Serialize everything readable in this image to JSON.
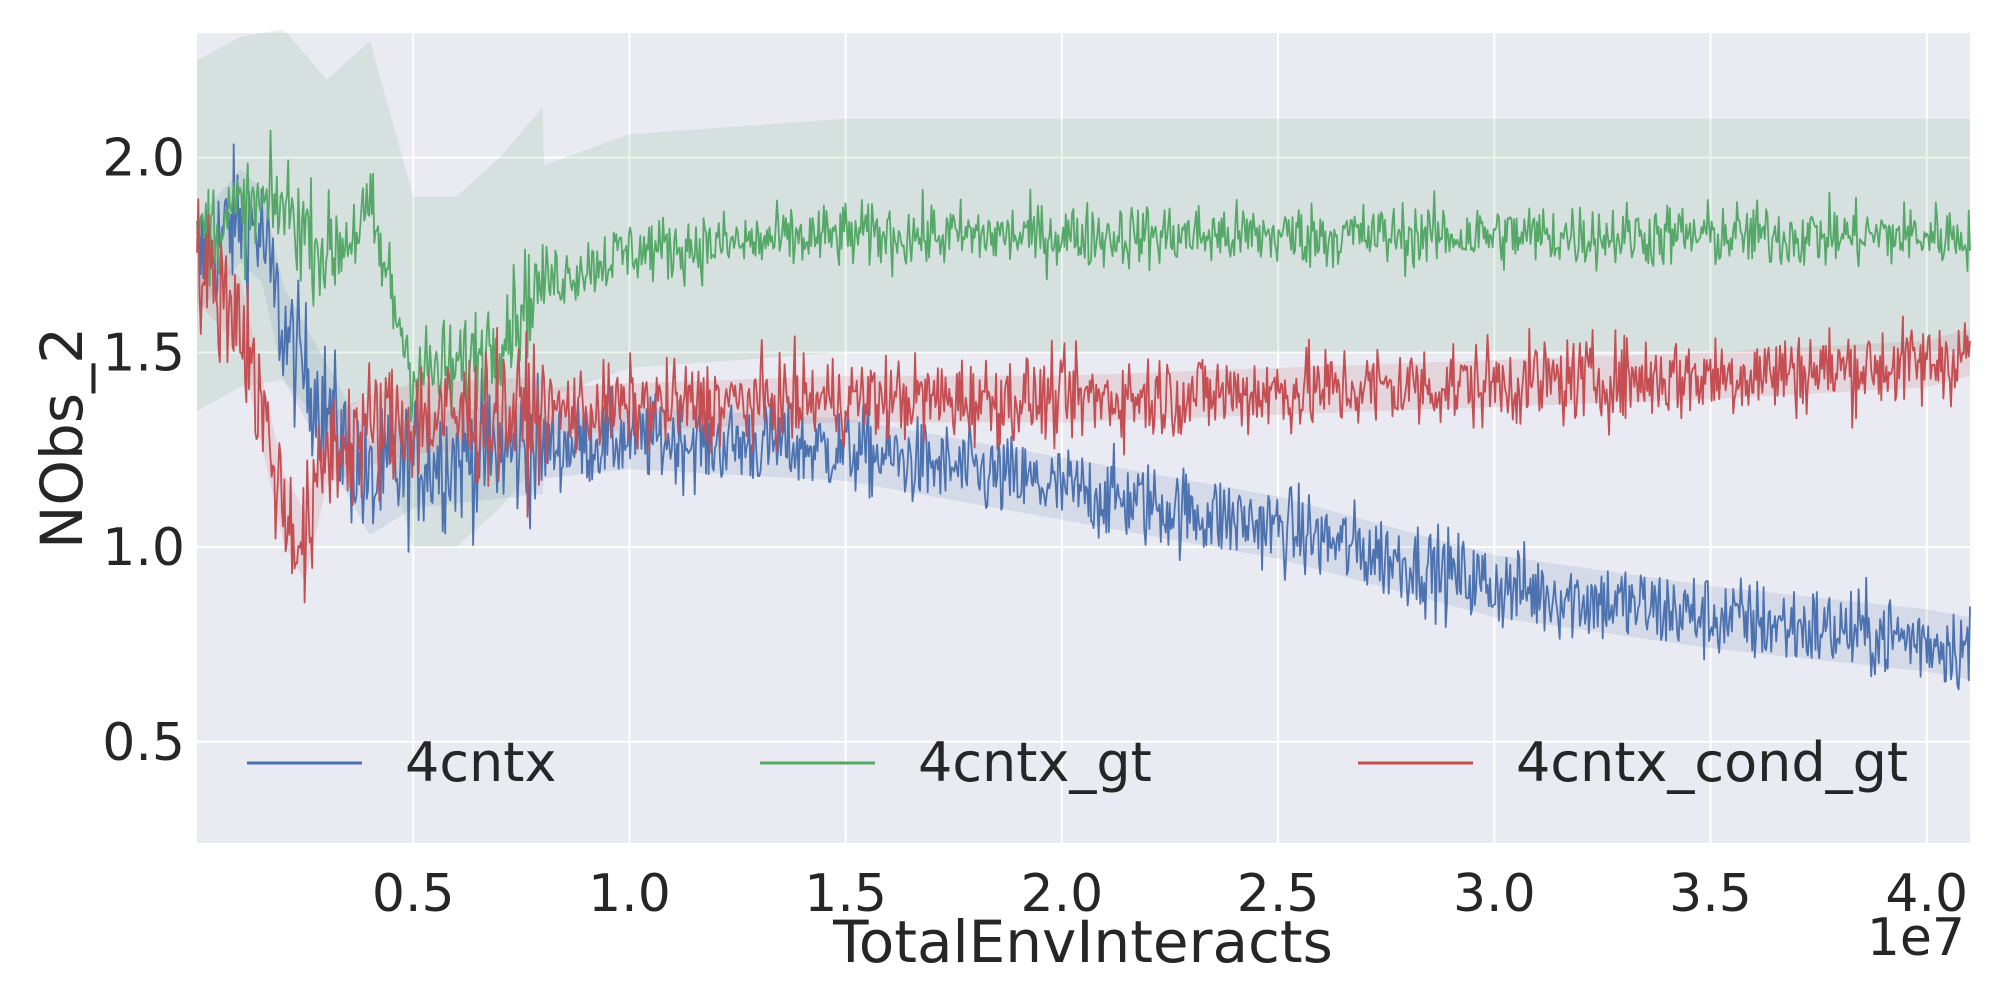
{
  "chart_data": {
    "type": "line",
    "xlabel": "TotalEnvInteracts",
    "ylabel": "NObs_2",
    "x_offset_label": "1e7",
    "xlim": [
      0,
      4.1
    ],
    "ylim": [
      0.24,
      2.32
    ],
    "xticks": [
      0.5,
      1.0,
      1.5,
      2.0,
      2.5,
      3.0,
      3.5,
      4.0
    ],
    "xtick_labels": [
      "0.5",
      "1.0",
      "1.5",
      "2.0",
      "2.5",
      "3.0",
      "3.5",
      "4.0"
    ],
    "yticks": [
      0.5,
      1.0,
      1.5,
      2.0
    ],
    "ytick_labels": [
      "0.5",
      "1.0",
      "1.5",
      "2.0"
    ],
    "grid": true,
    "legend_placement": "lower center, 3 columns",
    "colors": {
      "background": "#eaeaf2",
      "grid": "#ffffff"
    },
    "series": [
      {
        "name": "4cntx",
        "color": "#4c72b0",
        "x": [
          0.0,
          0.1,
          0.15,
          0.2,
          0.25,
          0.3,
          0.4,
          0.5,
          0.75,
          1.0,
          1.5,
          2.0,
          2.5,
          3.0,
          3.5,
          4.0,
          4.1
        ],
        "mean": [
          1.72,
          1.85,
          1.8,
          1.55,
          1.45,
          1.35,
          1.15,
          1.22,
          1.25,
          1.28,
          1.25,
          1.15,
          1.05,
          0.9,
          0.82,
          0.76,
          0.74
        ],
        "noise": 0.08,
        "band": 0.08
      },
      {
        "name": "4cntx_gt",
        "color": "#55a868",
        "x": [
          0.0,
          0.1,
          0.2,
          0.3,
          0.4,
          0.5,
          0.6,
          0.7,
          0.8,
          1.0,
          1.5,
          2.0,
          2.5,
          3.0,
          3.5,
          4.0,
          4.1
        ],
        "mean": [
          1.8,
          1.86,
          1.88,
          1.75,
          1.85,
          1.45,
          1.45,
          1.55,
          1.68,
          1.76,
          1.8,
          1.8,
          1.8,
          1.8,
          1.8,
          1.8,
          1.8
        ],
        "noise": 0.06,
        "band": 0.3
      },
      {
        "name": "4cntx_cond_gt",
        "color": "#c44e52",
        "x": [
          0.0,
          0.1,
          0.2,
          0.25,
          0.3,
          0.4,
          0.5,
          1.0,
          1.5,
          2.0,
          2.5,
          3.0,
          3.5,
          4.0,
          4.1
        ],
        "mean": [
          1.72,
          1.6,
          1.1,
          1.0,
          1.25,
          1.3,
          1.33,
          1.36,
          1.38,
          1.38,
          1.4,
          1.42,
          1.44,
          1.47,
          1.5
        ],
        "noise": 0.08,
        "band": 0.06
      }
    ]
  }
}
